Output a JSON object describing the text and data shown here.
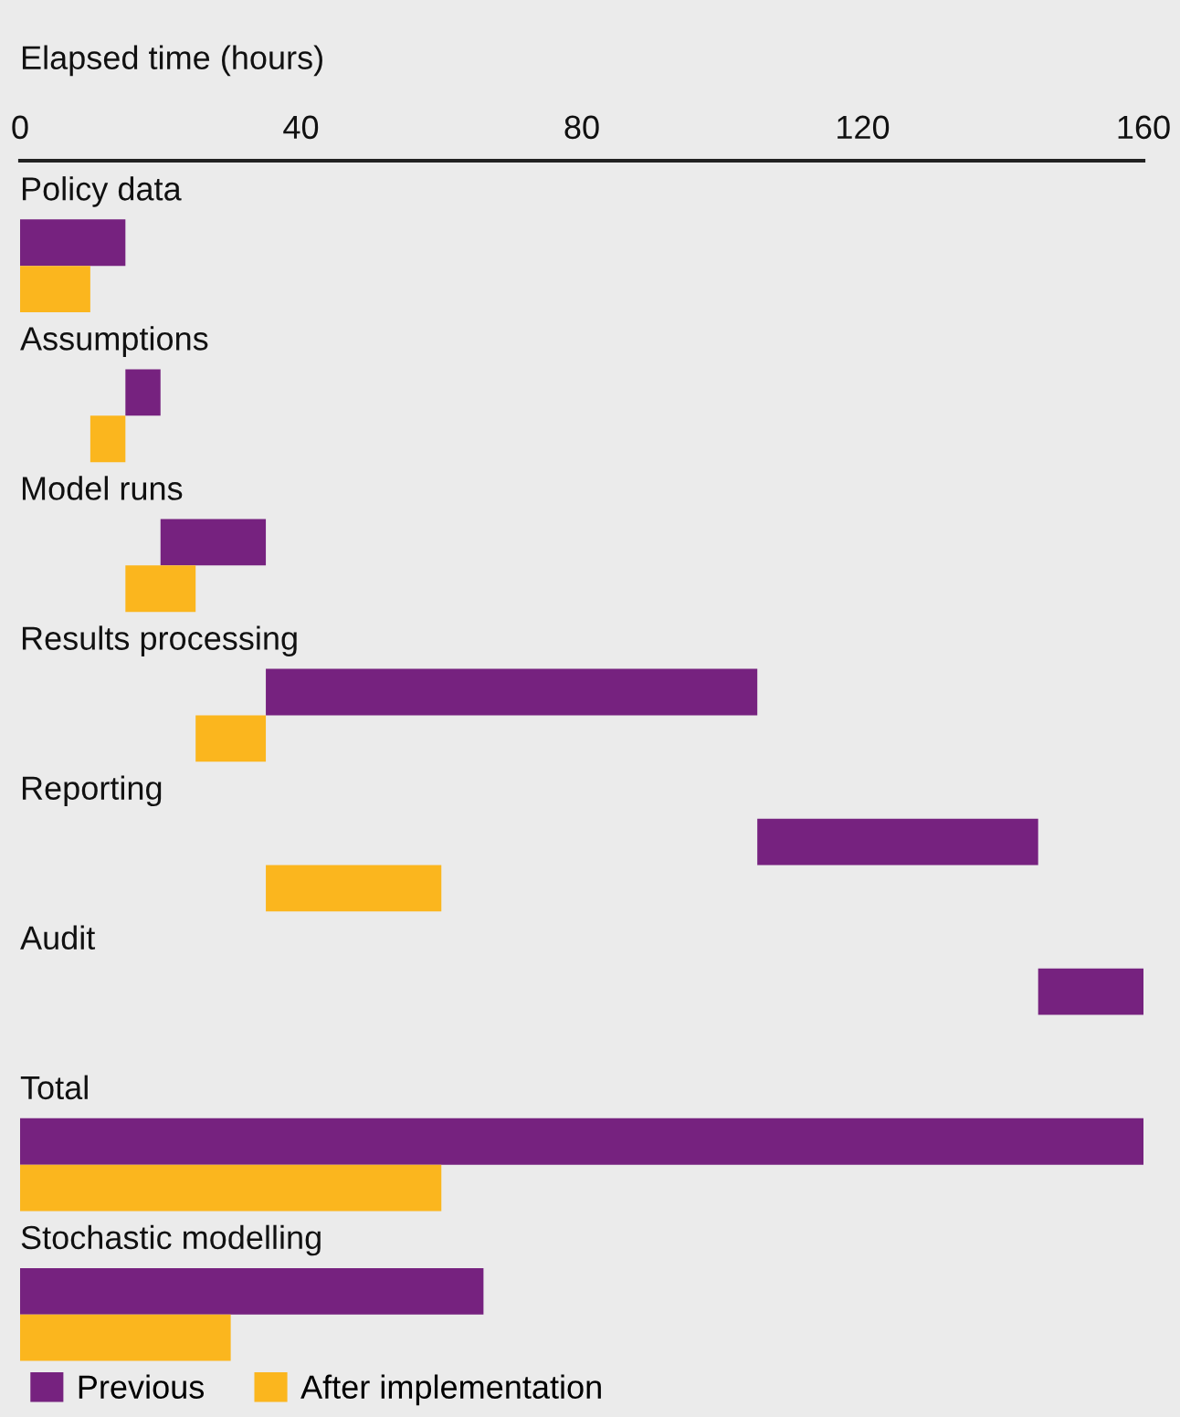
{
  "chart_data": {
    "type": "bar",
    "orientation": "horizontal",
    "xlabel": "Elapsed time (hours)",
    "categories": [
      "Policy data",
      "Assumptions",
      "Model runs",
      "Results processing",
      "Reporting",
      "Audit",
      "Total",
      "Stochastic modelling"
    ],
    "series": [
      {
        "name": "Previous",
        "color": "#76227f",
        "base": [
          0,
          15,
          20,
          35,
          105,
          145,
          0,
          0
        ],
        "values": [
          15,
          5,
          15,
          70,
          40,
          15,
          160,
          66
        ]
      },
      {
        "name": "After implementation",
        "color": "#fbb61e",
        "base": [
          0,
          10,
          15,
          25,
          35,
          null,
          0,
          0
        ],
        "values": [
          10,
          5,
          10,
          10,
          25,
          null,
          60,
          30
        ]
      }
    ],
    "xlim": [
      0,
      160
    ],
    "xticks": [
      0,
      40,
      80,
      120,
      160
    ],
    "grid": false,
    "legend": "bottom"
  }
}
